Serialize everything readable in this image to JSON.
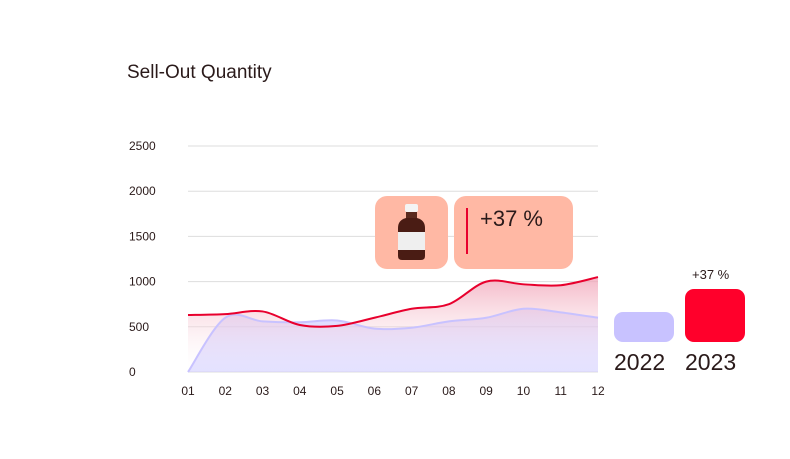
{
  "chart_data": {
    "type": "area",
    "title": "Sell-Out Quantity",
    "xlabel": "",
    "ylabel": "",
    "categories": [
      "01",
      "02",
      "03",
      "04",
      "05",
      "06",
      "07",
      "08",
      "09",
      "10",
      "11",
      "12"
    ],
    "yticks": [
      0,
      500,
      1000,
      1500,
      2000,
      2500
    ],
    "ylim": [
      0,
      2500
    ],
    "grid": true,
    "series": [
      {
        "name": "2022",
        "values": [
          0,
          600,
          560,
          550,
          570,
          480,
          490,
          560,
          600,
          700,
          660,
          600
        ]
      },
      {
        "name": "2023",
        "values": [
          630,
          640,
          670,
          520,
          510,
          600,
          700,
          750,
          1000,
          970,
          960,
          1050
        ]
      }
    ],
    "callout": {
      "icon": "medicine-bottle-icon",
      "change": "+37 %"
    },
    "legend": {
      "change": "+37 %",
      "items": [
        {
          "label": "2022",
          "color": "#c8c2ff"
        },
        {
          "label": "2023",
          "color": "#ff002b"
        }
      ]
    }
  },
  "colors": {
    "series_2022": "#c8c2ff",
    "series_2023": "#e8002d",
    "callout_bg": "#ffb8a4",
    "grid": "#dddddd"
  }
}
